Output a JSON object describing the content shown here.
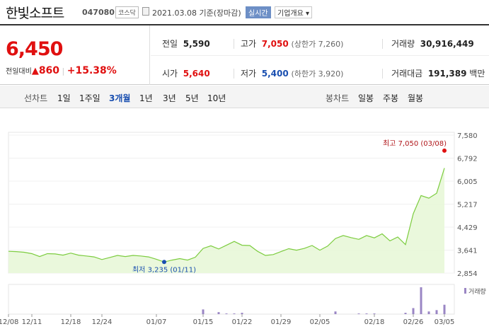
{
  "header": {
    "name": "한빛소프트",
    "code": "047080",
    "market": "코스닥",
    "date": "2021.03.08",
    "basis": "기준(장마감)",
    "realtime": "실시간",
    "overview": "기업개요 ▾"
  },
  "quote": {
    "price": "6,450",
    "change_label": "전일대비",
    "change_arrow": "▲",
    "change": "860",
    "change_pct": "+15.38%",
    "prev_label": "전일",
    "prev": "5,590",
    "high_label": "고가",
    "high": "7,050",
    "upper_limit": "(상한가 7,260)",
    "volume_label": "거래량",
    "volume": "30,916,449",
    "open_label": "시가",
    "open": "5,640",
    "low_label": "저가",
    "low": "5,400",
    "lower_limit": "(하한가 3,920)",
    "amount_label": "거래대금",
    "amount": "191,389",
    "amount_unit": "백만"
  },
  "toolbar": {
    "line_label": "선차트",
    "periods": [
      "1일",
      "1주일",
      "3개월",
      "1년",
      "3년",
      "5년",
      "10년"
    ],
    "active_period": "3개월",
    "candle_label": "봉차트",
    "candle_periods": [
      "일봉",
      "주봉",
      "월봉"
    ]
  },
  "colors": {
    "up": "#e01010",
    "down": "#1a4fb0",
    "line": "#7ccc3f",
    "fill": "#e8f7d8",
    "volume": "#9a86c4"
  },
  "chart_data": {
    "type": "area",
    "ylim": [
      2854,
      7580
    ],
    "y_ticks": [
      "7,580",
      "6,792",
      "6,005",
      "5,217",
      "4,429",
      "3,641",
      "2,854"
    ],
    "x_ticks": [
      "12/08",
      "12/11",
      "12/18",
      "12/24",
      "01/07",
      "01/15",
      "01/22",
      "01/29",
      "02/05",
      "02/18",
      "02/26",
      "03/05"
    ],
    "max_label": "최고 7,050 (03/08)",
    "min_label": "최저 3,235 (01/11)",
    "volume_label": "거래량",
    "series": [
      {
        "values": [
          3600,
          3590,
          3570,
          3520,
          3420,
          3520,
          3510,
          3470,
          3540,
          3470,
          3440,
          3410,
          3320,
          3390,
          3460,
          3420,
          3460,
          3440,
          3410,
          3330,
          3235,
          3300,
          3350,
          3300,
          3400,
          3700,
          3790,
          3680,
          3810,
          3940,
          3810,
          3800,
          3600,
          3460,
          3490,
          3590,
          3690,
          3640,
          3700,
          3800,
          3640,
          3780,
          4040,
          4140,
          4070,
          4010,
          4140,
          4060,
          4200,
          3960,
          4090,
          3830,
          4890,
          5510,
          5420,
          5590,
          6450
        ],
        "volume": [
          0,
          0,
          0,
          0,
          0,
          0,
          0,
          0,
          0,
          0,
          0,
          0,
          0,
          0,
          0,
          0,
          0,
          0,
          0,
          0,
          0,
          0,
          0,
          0,
          0,
          7,
          0,
          3,
          1,
          1,
          2,
          0,
          0,
          0,
          0,
          0,
          0,
          0,
          0,
          0,
          0,
          0,
          4,
          0,
          0,
          1,
          1,
          1,
          0,
          0,
          0,
          2,
          9,
          40,
          4,
          6,
          14
        ]
      }
    ]
  }
}
